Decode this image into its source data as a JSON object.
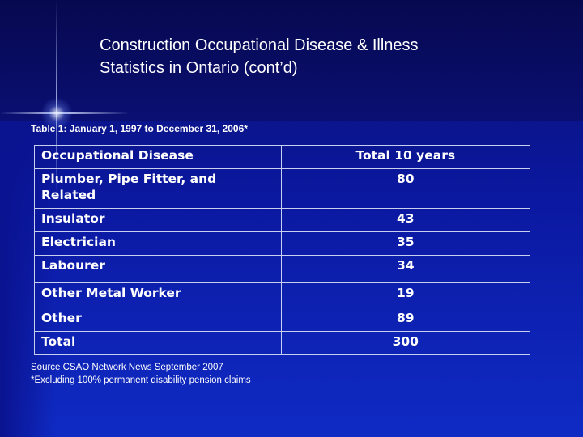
{
  "slide": {
    "title_lines": [
      "Construction Occupational Disease & Illness",
      "Statistics in Ontario (cont’d)"
    ],
    "caption": "Table 1: January 1, 1997 to December 31, 2006*"
  },
  "table": {
    "headers": [
      "Occupational Disease",
      "Total 10 years"
    ],
    "rows": [
      [
        "Plumber, Pipe Fitter, and Related",
        "80"
      ],
      [
        "Insulator",
        "43"
      ],
      [
        "Electrician",
        "35"
      ],
      [
        "Labourer",
        "34"
      ],
      [
        "Other Metal Worker",
        "19"
      ],
      [
        "Other",
        "89"
      ],
      [
        "Total",
        "300"
      ]
    ]
  },
  "footnotes": [
    "Source CSAO Network News September 2007",
    "*Excluding 100% permanent disability pension claims"
  ],
  "colors": {
    "background": "#0b18a0",
    "text": "#ffffff",
    "table_border": "#c9d0ee"
  }
}
